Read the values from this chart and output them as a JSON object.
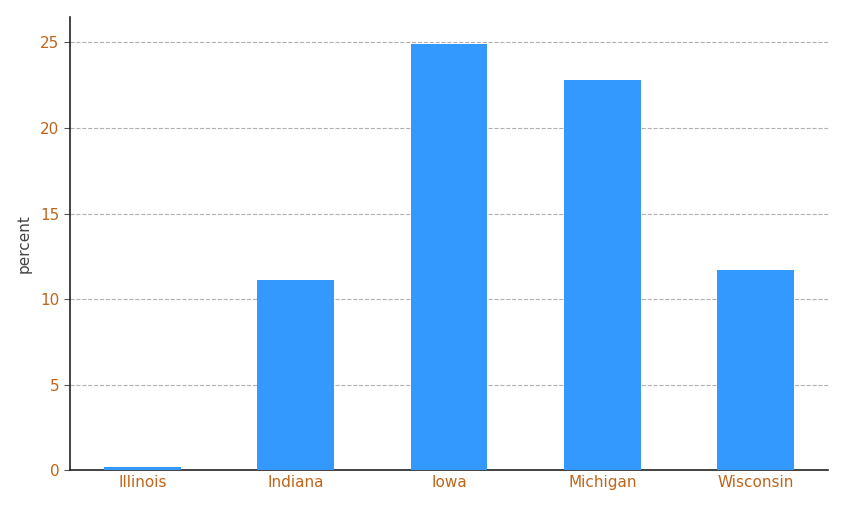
{
  "categories": [
    "Illinois",
    "Indiana",
    "Iowa",
    "Michigan",
    "Wisconsin"
  ],
  "values": [
    0.2,
    11.1,
    24.9,
    22.8,
    11.7
  ],
  "bar_color": "#3399ff",
  "ylabel": "percent",
  "ylim": [
    0,
    26.5
  ],
  "yticks": [
    0,
    5,
    10,
    15,
    20,
    25
  ],
  "background_color": "#ffffff",
  "grid_color": "#b0b0b0",
  "tick_label_color": "#c0651a",
  "ylabel_color": "#444444",
  "bar_width": 0.5,
  "spine_color": "#222222",
  "tick_color": "#555555"
}
